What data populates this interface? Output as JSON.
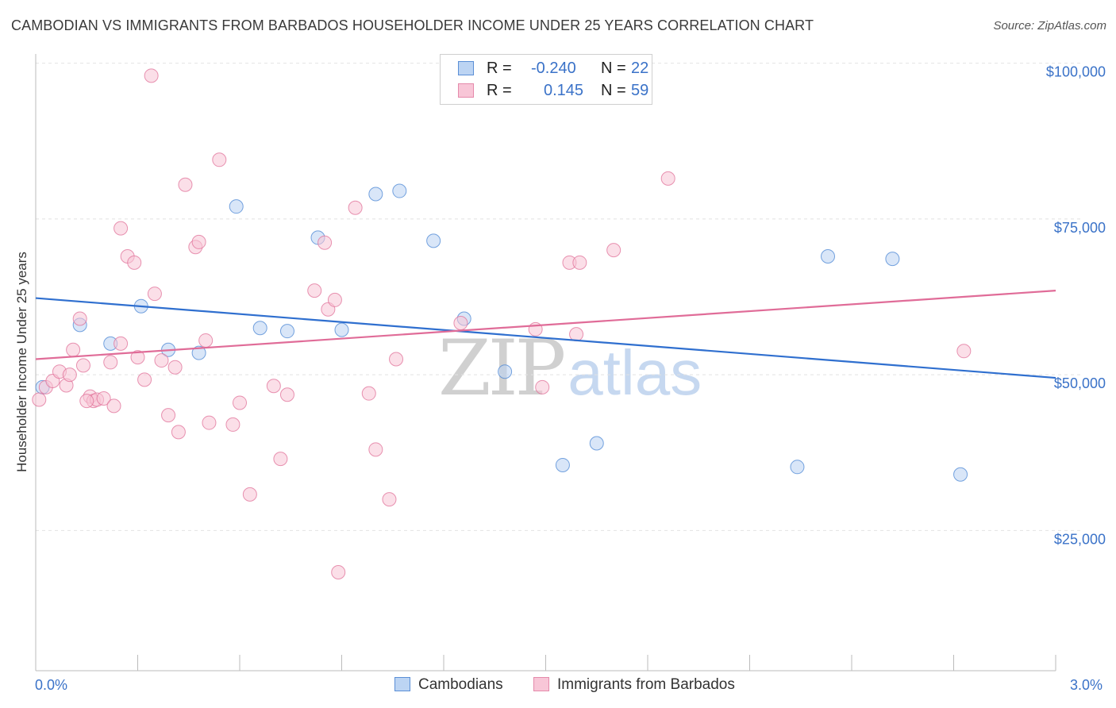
{
  "title": "CAMBODIAN VS IMMIGRANTS FROM BARBADOS HOUSEHOLDER INCOME UNDER 25 YEARS CORRELATION CHART",
  "source": "Source: ZipAtlas.com",
  "watermark": {
    "zip": "ZIP",
    "atlas": "atlas"
  },
  "legend": {
    "rows": [
      {
        "r_label": "R =",
        "r_value": "-0.240",
        "n_label": "N =",
        "n_value": "22",
        "color": "#aac8f0"
      },
      {
        "r_label": "R =",
        "r_value": "0.145",
        "n_label": "N =",
        "n_value": "59",
        "color": "#f6bcd0"
      }
    ]
  },
  "bottom_legend": [
    {
      "label": "Cambodians",
      "color": "#aac8f0"
    },
    {
      "label": "Immigrants from Barbados",
      "color": "#f6bcd0"
    }
  ],
  "x_ticks": {
    "left": "0.0%",
    "right": "3.0%"
  },
  "chart_data": {
    "type": "scatter",
    "title": "CAMBODIAN VS IMMIGRANTS FROM BARBADOS HOUSEHOLDER INCOME UNDER 25 YEARS CORRELATION CHART",
    "xlabel": "",
    "ylabel": "Householder Income Under 25 years",
    "xlim": [
      0.0,
      3.0
    ],
    "ylim": [
      2500,
      102500
    ],
    "y_ticks": [
      {
        "value": 25000,
        "label": "$25,000"
      },
      {
        "value": 50000,
        "label": "$50,000"
      },
      {
        "value": 75000,
        "label": "$75,000"
      },
      {
        "value": 100000,
        "label": "$100,000"
      }
    ],
    "x_tick_values": [
      0.0,
      0.3,
      0.6,
      0.9,
      1.2,
      1.5,
      1.8,
      2.1,
      2.4,
      2.7,
      3.0
    ],
    "grid": true,
    "series": [
      {
        "name": "Cambodians",
        "color": "#4a86d4",
        "fill": "#b9d2f2",
        "points": [
          [
            0.02,
            48000
          ],
          [
            0.13,
            58000
          ],
          [
            0.22,
            55000
          ],
          [
            0.31,
            61000
          ],
          [
            0.39,
            54000
          ],
          [
            0.48,
            53500
          ],
          [
            0.59,
            77000
          ],
          [
            0.66,
            57500
          ],
          [
            0.74,
            57000
          ],
          [
            0.83,
            72000
          ],
          [
            0.9,
            57200
          ],
          [
            1.0,
            79000
          ],
          [
            1.07,
            79500
          ],
          [
            1.17,
            71500
          ],
          [
            1.26,
            59000
          ],
          [
            1.38,
            50500
          ],
          [
            1.55,
            35500
          ],
          [
            1.65,
            39000
          ],
          [
            2.24,
            35200
          ],
          [
            2.33,
            69000
          ],
          [
            2.52,
            68600
          ],
          [
            2.72,
            34000
          ]
        ],
        "trend": {
          "x": [
            0.0,
            3.0
          ],
          "y": [
            62300,
            49500
          ]
        }
      },
      {
        "name": "Immigrants from Barbados",
        "color": "#e07098",
        "fill": "#f7c4d6",
        "points": [
          [
            0.01,
            46000
          ],
          [
            0.03,
            48000
          ],
          [
            0.05,
            49000
          ],
          [
            0.07,
            50500
          ],
          [
            0.09,
            48300
          ],
          [
            0.1,
            50000
          ],
          [
            0.11,
            54000
          ],
          [
            0.13,
            59000
          ],
          [
            0.14,
            51500
          ],
          [
            0.16,
            46500
          ],
          [
            0.17,
            45800
          ],
          [
            0.18,
            46000
          ],
          [
            0.2,
            46200
          ],
          [
            0.22,
            52000
          ],
          [
            0.23,
            45000
          ],
          [
            0.25,
            55000
          ],
          [
            0.25,
            73500
          ],
          [
            0.27,
            69000
          ],
          [
            0.29,
            68000
          ],
          [
            0.3,
            52800
          ],
          [
            0.32,
            49200
          ],
          [
            0.35,
            63000
          ],
          [
            0.37,
            52300
          ],
          [
            0.39,
            43500
          ],
          [
            0.41,
            51200
          ],
          [
            0.42,
            40800
          ],
          [
            0.44,
            80500
          ],
          [
            0.47,
            70500
          ],
          [
            0.48,
            71300
          ],
          [
            0.5,
            55500
          ],
          [
            0.51,
            42300
          ],
          [
            0.54,
            84500
          ],
          [
            0.58,
            42000
          ],
          [
            0.6,
            45500
          ],
          [
            0.63,
            30800
          ],
          [
            0.7,
            48200
          ],
          [
            0.72,
            36500
          ],
          [
            0.74,
            46800
          ],
          [
            0.82,
            63500
          ],
          [
            0.85,
            71200
          ],
          [
            0.86,
            60500
          ],
          [
            0.88,
            62000
          ],
          [
            0.89,
            18300
          ],
          [
            0.94,
            76800
          ],
          [
            0.98,
            47000
          ],
          [
            1.0,
            38000
          ],
          [
            1.04,
            30000
          ],
          [
            1.06,
            52500
          ],
          [
            1.25,
            58300
          ],
          [
            1.47,
            57300
          ],
          [
            1.49,
            48000
          ],
          [
            1.57,
            68000
          ],
          [
            1.59,
            56500
          ],
          [
            1.6,
            68000
          ],
          [
            1.7,
            70000
          ],
          [
            1.86,
            81500
          ],
          [
            0.34,
            98000
          ],
          [
            2.73,
            53800
          ],
          [
            0.15,
            45800
          ]
        ],
        "trend": {
          "x": [
            0.0,
            3.0
          ],
          "y": [
            52500,
            63500
          ]
        }
      }
    ]
  }
}
